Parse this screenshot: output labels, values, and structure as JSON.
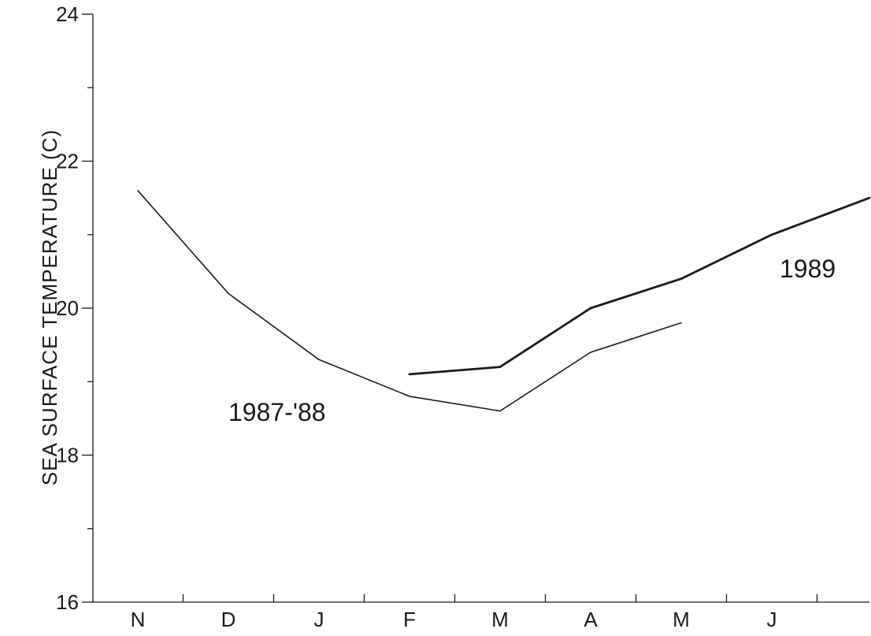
{
  "chart_data": {
    "type": "line",
    "xlabel": "",
    "ylabel": "SEA SURFACE TEMPERATURE (C)",
    "categories": [
      "N",
      "D",
      "J",
      "F",
      "M",
      "A",
      "M",
      "J"
    ],
    "yticks": [
      16,
      18,
      20,
      22,
      24
    ],
    "ylim": [
      16,
      24
    ],
    "grid": false,
    "series": [
      {
        "name": "1987-'88",
        "x": [
          0,
          1,
          2,
          3,
          4,
          5,
          6
        ],
        "values": [
          21.6,
          20.2,
          19.3,
          18.8,
          18.6,
          19.4,
          19.8
        ],
        "stroke_width": 1.6
      },
      {
        "name": "1989",
        "x": [
          3,
          4,
          5,
          6,
          7,
          8.3
        ],
        "values": [
          19.1,
          19.2,
          20.0,
          20.4,
          21.0,
          21.5
        ],
        "stroke_width": 2.8
      }
    ]
  }
}
